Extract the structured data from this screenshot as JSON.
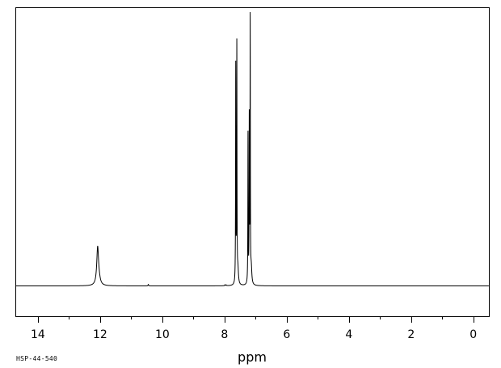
{
  "chart_data": {
    "type": "line",
    "title": "",
    "xlabel": "ppm",
    "ylabel": "",
    "x_reversed": true,
    "xlim": [
      -0.5,
      14.7
    ],
    "x_ticks": [
      "14",
      "12",
      "10",
      "8",
      "6",
      "4",
      "2",
      "0"
    ],
    "x_tick_values": [
      14,
      12,
      10,
      8,
      6,
      4,
      2,
      0
    ],
    "x_minor_tick_values": [
      13,
      11,
      9,
      7,
      5,
      3,
      1
    ],
    "ylim": [
      -0.12,
      1.1
    ],
    "grid": false,
    "series": [
      {
        "peaks": [
          {
            "ppm": 12.08,
            "intensity": 0.145,
            "width": 0.035
          },
          {
            "ppm": 12.04,
            "intensity": 0.02,
            "width": 0.05
          },
          {
            "ppm": 10.45,
            "intensity": 0.006,
            "width": 0.01
          },
          {
            "ppm": 7.985,
            "intensity": 0.004,
            "width": 0.01
          },
          {
            "ppm": 7.945,
            "intensity": 0.003,
            "width": 0.01
          },
          {
            "ppm": 7.64,
            "intensity": 0.86,
            "width": 0.006
          },
          {
            "ppm": 7.605,
            "intensity": 0.94,
            "width": 0.006
          },
          {
            "ppm": 7.57,
            "intensity": 0.06,
            "width": 0.02
          },
          {
            "ppm": 7.245,
            "intensity": 0.59,
            "width": 0.006
          },
          {
            "ppm": 7.205,
            "intensity": 0.64,
            "width": 0.006
          },
          {
            "ppm": 7.175,
            "intensity": 1.04,
            "width": 0.006
          },
          {
            "ppm": 7.14,
            "intensity": 0.06,
            "width": 0.02
          }
        ]
      }
    ]
  },
  "footer": {
    "spectrum_id": "HSP-44-540"
  }
}
